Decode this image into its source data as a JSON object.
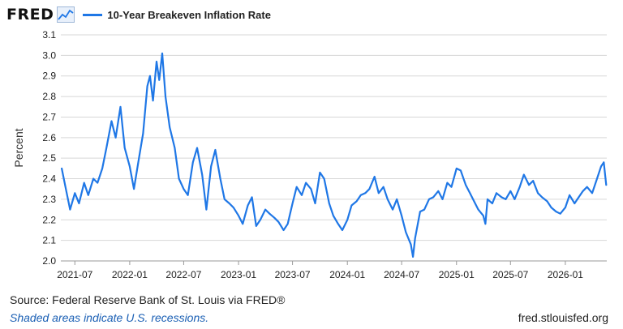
{
  "header": {
    "logo": "FRED",
    "logo_icon": "line-chart-icon"
  },
  "colors": {
    "series": "#1f77e6",
    "grid": "#d7d7d7",
    "axis": "#999999"
  },
  "footer": {
    "source_prefix": "Source: Federal Reserve Bank of St. Louis via ",
    "source_brand": "FRED®",
    "note": "Shaded areas indicate U.S. recessions.",
    "url": "fred.stlouisfed.org"
  },
  "chart_data": {
    "type": "line",
    "ylabel": "Percent",
    "ylim": [
      2.0,
      3.1
    ],
    "yticks": [
      "2.0",
      "2.1",
      "2.2",
      "2.3",
      "2.4",
      "2.5",
      "2.6",
      "2.7",
      "2.8",
      "2.9",
      "3.0",
      "3.1"
    ],
    "xlim": [
      "2021-05-15",
      "2026-05-20"
    ],
    "xticks": [
      "2021-07",
      "2022-01",
      "2022-07",
      "2023-01",
      "2023-07",
      "2024-01",
      "2024-07",
      "2025-01",
      "2025-07",
      "2026-01"
    ],
    "grid": true,
    "legend": "top-left",
    "series": [
      {
        "name": "10-Year Breakeven Inflation Rate",
        "color": "#1f77e6",
        "x": [
          "2021-05-18",
          "2021-06-01",
          "2021-06-15",
          "2021-07-01",
          "2021-07-15",
          "2021-08-01",
          "2021-08-15",
          "2021-09-01",
          "2021-09-15",
          "2021-10-01",
          "2021-10-15",
          "2021-11-01",
          "2021-11-15",
          "2021-12-01",
          "2021-12-15",
          "2022-01-01",
          "2022-01-15",
          "2022-02-01",
          "2022-02-15",
          "2022-03-01",
          "2022-03-10",
          "2022-03-20",
          "2022-04-01",
          "2022-04-10",
          "2022-04-20",
          "2022-05-01",
          "2022-05-15",
          "2022-06-01",
          "2022-06-15",
          "2022-07-01",
          "2022-07-15",
          "2022-08-01",
          "2022-08-15",
          "2022-09-01",
          "2022-09-15",
          "2022-10-01",
          "2022-10-15",
          "2022-11-01",
          "2022-11-15",
          "2022-12-01",
          "2022-12-15",
          "2023-01-01",
          "2023-01-15",
          "2023-02-01",
          "2023-02-15",
          "2023-03-01",
          "2023-03-15",
          "2023-04-01",
          "2023-04-15",
          "2023-05-01",
          "2023-05-15",
          "2023-06-01",
          "2023-06-15",
          "2023-07-01",
          "2023-07-15",
          "2023-08-01",
          "2023-08-15",
          "2023-09-01",
          "2023-09-15",
          "2023-10-01",
          "2023-10-15",
          "2023-11-01",
          "2023-11-15",
          "2023-12-01",
          "2023-12-15",
          "2024-01-01",
          "2024-01-15",
          "2024-02-01",
          "2024-02-15",
          "2024-03-01",
          "2024-03-15",
          "2024-04-01",
          "2024-04-15",
          "2024-05-01",
          "2024-05-15",
          "2024-06-01",
          "2024-06-15",
          "2024-07-01",
          "2024-07-15",
          "2024-08-01",
          "2024-08-08",
          "2024-08-15",
          "2024-09-01",
          "2024-09-15",
          "2024-10-01",
          "2024-10-15",
          "2024-11-01",
          "2024-11-15",
          "2024-12-01",
          "2024-12-15",
          "2025-01-01",
          "2025-01-15",
          "2025-02-01",
          "2025-02-15",
          "2025-03-01",
          "2025-03-15",
          "2025-04-01",
          "2025-04-08",
          "2025-04-15",
          "2025-05-01",
          "2025-05-15",
          "2025-06-01",
          "2025-06-15",
          "2025-07-01",
          "2025-07-15",
          "2025-08-01",
          "2025-08-15",
          "2025-09-01",
          "2025-09-15",
          "2025-10-01",
          "2025-10-15",
          "2025-11-01",
          "2025-11-15",
          "2025-12-01",
          "2025-12-15",
          "2026-01-01",
          "2026-01-15",
          "2026-02-01",
          "2026-02-15",
          "2026-03-01",
          "2026-03-15",
          "2026-04-01",
          "2026-04-15",
          "2026-05-01",
          "2026-05-10",
          "2026-05-18"
        ],
        "values": [
          2.45,
          2.35,
          2.25,
          2.33,
          2.28,
          2.38,
          2.32,
          2.4,
          2.38,
          2.45,
          2.55,
          2.68,
          2.6,
          2.75,
          2.55,
          2.46,
          2.35,
          2.5,
          2.62,
          2.85,
          2.9,
          2.78,
          2.97,
          2.88,
          3.01,
          2.8,
          2.65,
          2.55,
          2.4,
          2.35,
          2.32,
          2.48,
          2.55,
          2.42,
          2.25,
          2.46,
          2.54,
          2.4,
          2.3,
          2.28,
          2.26,
          2.22,
          2.18,
          2.27,
          2.31,
          2.17,
          2.2,
          2.25,
          2.23,
          2.21,
          2.19,
          2.15,
          2.18,
          2.28,
          2.36,
          2.32,
          2.38,
          2.35,
          2.28,
          2.43,
          2.4,
          2.28,
          2.22,
          2.18,
          2.15,
          2.2,
          2.27,
          2.29,
          2.32,
          2.33,
          2.35,
          2.41,
          2.33,
          2.36,
          2.3,
          2.25,
          2.3,
          2.22,
          2.14,
          2.08,
          2.02,
          2.11,
          2.24,
          2.25,
          2.3,
          2.31,
          2.34,
          2.3,
          2.38,
          2.36,
          2.45,
          2.44,
          2.37,
          2.33,
          2.29,
          2.25,
          2.22,
          2.18,
          2.3,
          2.28,
          2.33,
          2.31,
          2.3,
          2.34,
          2.3,
          2.36,
          2.42,
          2.37,
          2.39,
          2.33,
          2.31,
          2.29,
          2.26,
          2.24,
          2.23,
          2.26,
          2.32,
          2.28,
          2.31,
          2.34,
          2.36,
          2.33,
          2.39,
          2.46,
          2.48,
          2.37
        ]
      }
    ]
  }
}
